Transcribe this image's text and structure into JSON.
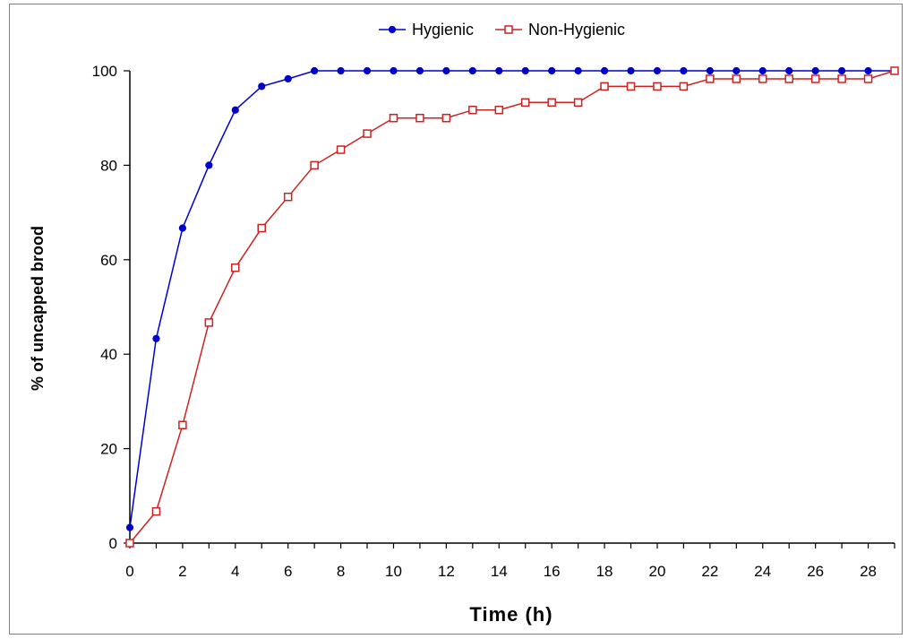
{
  "chart_data": {
    "type": "line",
    "xlabel": "Time (h)",
    "ylabel": "% of uncapped brood",
    "xlim": [
      0,
      29
    ],
    "ylim": [
      0,
      100
    ],
    "x_ticks": [
      0,
      2,
      4,
      6,
      8,
      10,
      12,
      14,
      16,
      18,
      20,
      22,
      24,
      26,
      28
    ],
    "y_ticks": [
      0,
      20,
      40,
      60,
      80,
      100
    ],
    "grid": false,
    "legend_position": "top",
    "x": [
      0,
      1,
      2,
      3,
      4,
      5,
      6,
      7,
      8,
      9,
      10,
      11,
      12,
      13,
      14,
      15,
      16,
      17,
      18,
      19,
      20,
      21,
      22,
      23,
      24,
      25,
      26,
      27,
      28,
      29
    ],
    "series": [
      {
        "name": "Hygienic",
        "color": "#0000cc",
        "marker": "filled-circle",
        "values": [
          3.3,
          43.3,
          66.7,
          80,
          91.7,
          96.7,
          98.3,
          100,
          100,
          100,
          100,
          100,
          100,
          100,
          100,
          100,
          100,
          100,
          100,
          100,
          100,
          100,
          100,
          100,
          100,
          100,
          100,
          100,
          100,
          100
        ]
      },
      {
        "name": "Non-Hygienic",
        "color": "#cc2222",
        "marker": "open-square",
        "values": [
          0,
          6.7,
          25,
          46.7,
          58.3,
          66.7,
          73.3,
          80,
          83.3,
          86.7,
          90,
          90,
          90,
          91.7,
          91.7,
          93.3,
          93.3,
          93.3,
          96.7,
          96.7,
          96.7,
          96.7,
          98.3,
          98.3,
          98.3,
          98.3,
          98.3,
          98.3,
          98.3,
          100
        ]
      }
    ]
  }
}
